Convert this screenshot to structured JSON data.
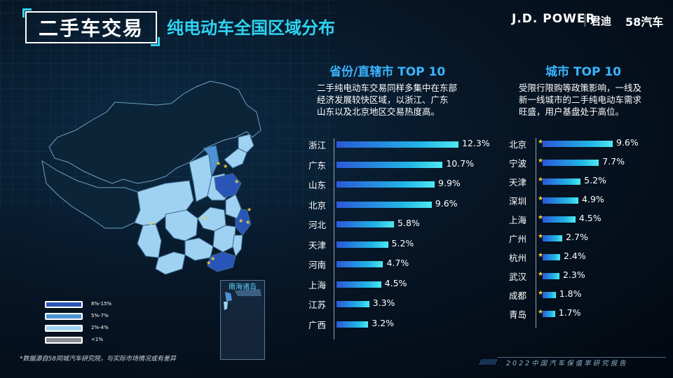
{
  "header": {
    "title_main": "二手车交易",
    "title_sub": "纯电动车全国区域分布",
    "brand_jd": "J.D. POWER",
    "brand_cn": "君迪",
    "brand_58": "58汽车"
  },
  "map": {
    "inset_label": "南海诸岛",
    "legend": [
      {
        "label": "8%-15%",
        "color": "#2a55b8"
      },
      {
        "label": "5%-7%",
        "color": "#4f93d6"
      },
      {
        "label": "2%-4%",
        "color": "#9fd2f2"
      },
      {
        "label": "<1%",
        "color": "#8a8f95"
      }
    ]
  },
  "provinces": {
    "title": "省份/直辖市 TOP 10",
    "desc_lines": [
      "二手纯电动车交易同样多集中在东部",
      "经济发展较快区域，以浙江、广东",
      "山东以及北京地区交易热度高。"
    ]
  },
  "cities": {
    "title": "城市 TOP 10",
    "desc_lines": [
      "受限行限购等政策影响，一线及",
      "新一线城市的二手纯电动车需求",
      "旺盛，用户基盘处于高位。"
    ]
  },
  "chart_data": [
    {
      "type": "bar",
      "title": "省份/直辖市 TOP 10",
      "categories": [
        "浙江",
        "广东",
        "山东",
        "北京",
        "河北",
        "天津",
        "河南",
        "上海",
        "江苏",
        "广西"
      ],
      "values": [
        12.3,
        10.7,
        9.9,
        9.6,
        5.8,
        5.2,
        4.7,
        4.5,
        3.3,
        3.2
      ],
      "value_labels": [
        "12.3%",
        "10.7%",
        "9.9%",
        "9.6%",
        "5.8%",
        "5.2%",
        "4.7%",
        "4.5%",
        "3.3%",
        "3.2%"
      ],
      "unit": "%"
    },
    {
      "type": "bar",
      "title": "城市 TOP 10",
      "categories": [
        "北京",
        "宁波",
        "天津",
        "深圳",
        "上海",
        "广州",
        "杭州",
        "武汉",
        "成都",
        "青岛"
      ],
      "values": [
        9.6,
        7.7,
        5.2,
        4.9,
        4.5,
        2.7,
        2.4,
        2.3,
        1.8,
        1.7
      ],
      "value_labels": [
        "9.6%",
        "7.7%",
        "5.2%",
        "4.9%",
        "4.5%",
        "2.7%",
        "2.4%",
        "2.3%",
        "1.8%",
        "1.7%"
      ],
      "unit": "%"
    }
  ],
  "footnote": "*数据源自58同城汽车研究院，与实际市场情况或有差异",
  "footer": {
    "slashes": "//////////",
    "text": "2022中国汽车保值率研究报告"
  }
}
